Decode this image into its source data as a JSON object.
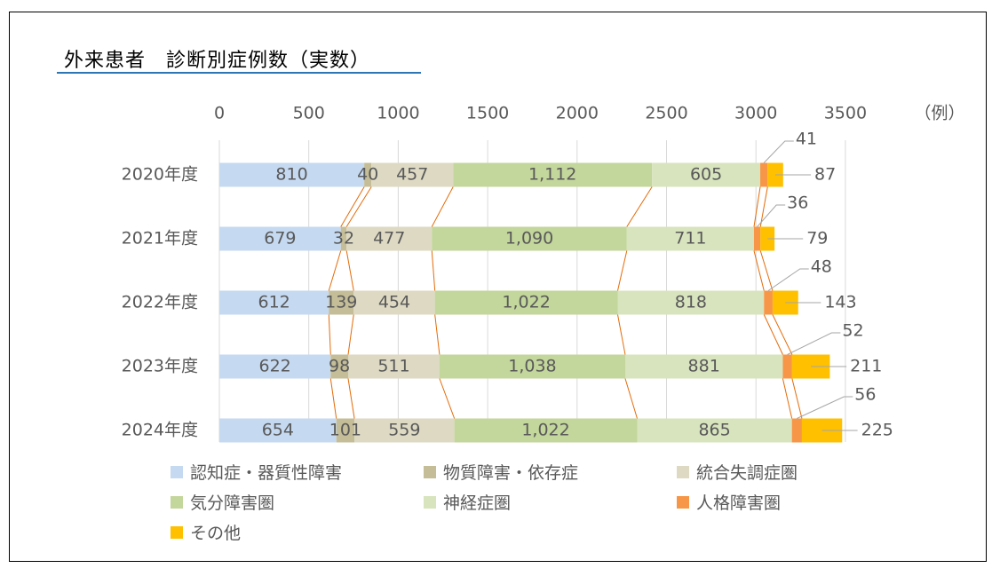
{
  "chart_data": {
    "type": "bar",
    "orientation": "horizontal",
    "stacked": true,
    "title": "外来患者　診断別症例数（実数）",
    "unit_label": "（例）",
    "categories": [
      "2020年度",
      "2021年度",
      "2022年度",
      "2023年度",
      "2024年度"
    ],
    "x_ticks": [
      "0",
      "500",
      "1000",
      "1500",
      "2000",
      "2500",
      "3000",
      "3500"
    ],
    "xlim": [
      0,
      3500
    ],
    "grid": true,
    "legend_position": "bottom",
    "series": [
      {
        "name": "認知症・器質性障害",
        "color": "#c5d9f1",
        "values": [
          810,
          679,
          612,
          622,
          654
        ],
        "labels": [
          "810",
          "679",
          "612",
          "622",
          "654"
        ]
      },
      {
        "name": "物質障害・依存症",
        "color": "#c4bd97",
        "values": [
          40,
          32,
          139,
          98,
          101
        ],
        "labels": [
          "40",
          "32",
          "139",
          "98",
          "101"
        ]
      },
      {
        "name": "統合失調症圏",
        "color": "#ddd9c3",
        "values": [
          457,
          477,
          454,
          511,
          559
        ],
        "labels": [
          "457",
          "477",
          "454",
          "511",
          "559"
        ]
      },
      {
        "name": "気分障害圏",
        "color": "#c3d69b",
        "values": [
          1112,
          1090,
          1022,
          1038,
          1022
        ],
        "labels": [
          "1,112",
          "1,090",
          "1,022",
          "1,038",
          "1,022"
        ]
      },
      {
        "name": "神経症圏",
        "color": "#d7e4bd",
        "values": [
          605,
          711,
          818,
          881,
          865
        ],
        "labels": [
          "605",
          "711",
          "818",
          "881",
          "865"
        ]
      },
      {
        "name": "人格障害圏",
        "color": "#f79646",
        "values": [
          41,
          36,
          48,
          52,
          56
        ],
        "labels": [
          "41",
          "36",
          "48",
          "52",
          "56"
        ]
      },
      {
        "name": "その他",
        "color": "#ffc000",
        "values": [
          87,
          79,
          143,
          211,
          225
        ],
        "labels": [
          "87",
          "79",
          "143",
          "211",
          "225"
        ]
      }
    ]
  }
}
